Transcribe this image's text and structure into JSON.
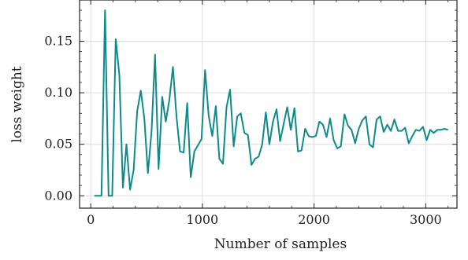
{
  "chart_data": {
    "type": "line",
    "title": "",
    "xlabel": "Number of samples",
    "ylabel": "loss weight",
    "xlim": [
      -100,
      3280
    ],
    "ylim": [
      -0.012,
      0.19
    ],
    "grid": true,
    "xticks": [
      {
        "value": 0,
        "label": "0"
      },
      {
        "value": 1000,
        "label": "1000"
      },
      {
        "value": 2000,
        "label": "2000"
      },
      {
        "value": 3000,
        "label": "3000"
      }
    ],
    "yticks": [
      {
        "value": 0.0,
        "label": "0.00"
      },
      {
        "value": 0.05,
        "label": "0.05"
      },
      {
        "value": 0.1,
        "label": "0.10"
      },
      {
        "value": 0.15,
        "label": "0.15"
      }
    ],
    "series": [
      {
        "color": "#0e8a8a",
        "x": [
          32,
          64,
          96,
          128,
          160,
          192,
          224,
          256,
          288,
          320,
          352,
          384,
          416,
          448,
          480,
          512,
          544,
          576,
          608,
          640,
          672,
          704,
          736,
          768,
          800,
          832,
          864,
          896,
          928,
          960,
          992,
          1024,
          1056,
          1088,
          1120,
          1152,
          1184,
          1216,
          1248,
          1280,
          1312,
          1344,
          1376,
          1408,
          1440,
          1472,
          1504,
          1536,
          1568,
          1600,
          1632,
          1664,
          1696,
          1728,
          1760,
          1792,
          1824,
          1856,
          1888,
          1920,
          1952,
          1984,
          2016,
          2048,
          2080,
          2112,
          2144,
          2176,
          2208,
          2240,
          2272,
          2304,
          2336,
          2368,
          2400,
          2432,
          2464,
          2496,
          2528,
          2560,
          2592,
          2624,
          2656,
          2688,
          2720,
          2752,
          2784,
          2816,
          2848,
          2880,
          2912,
          2944,
          2976,
          3008,
          3040,
          3072,
          3104,
          3136,
          3168,
          3200
        ],
        "y": [
          0.0,
          0.0,
          0.0,
          0.18,
          0.0,
          0.0,
          0.152,
          0.117,
          0.008,
          0.05,
          0.006,
          0.025,
          0.082,
          0.102,
          0.075,
          0.022,
          0.062,
          0.137,
          0.026,
          0.096,
          0.072,
          0.093,
          0.125,
          0.077,
          0.043,
          0.042,
          0.09,
          0.018,
          0.043,
          0.049,
          0.055,
          0.122,
          0.078,
          0.058,
          0.087,
          0.036,
          0.031,
          0.086,
          0.103,
          0.048,
          0.077,
          0.08,
          0.061,
          0.059,
          0.03,
          0.036,
          0.038,
          0.05,
          0.081,
          0.05,
          0.072,
          0.084,
          0.053,
          0.07,
          0.086,
          0.064,
          0.085,
          0.043,
          0.044,
          0.065,
          0.058,
          0.057,
          0.058,
          0.072,
          0.069,
          0.057,
          0.075,
          0.054,
          0.046,
          0.048,
          0.079,
          0.068,
          0.064,
          0.051,
          0.065,
          0.073,
          0.077,
          0.05,
          0.047,
          0.074,
          0.077,
          0.062,
          0.069,
          0.063,
          0.074,
          0.063,
          0.063,
          0.066,
          0.051,
          0.058,
          0.064,
          0.063,
          0.067,
          0.054,
          0.064,
          0.061,
          0.064,
          0.064,
          0.065,
          0.064
        ]
      }
    ]
  }
}
